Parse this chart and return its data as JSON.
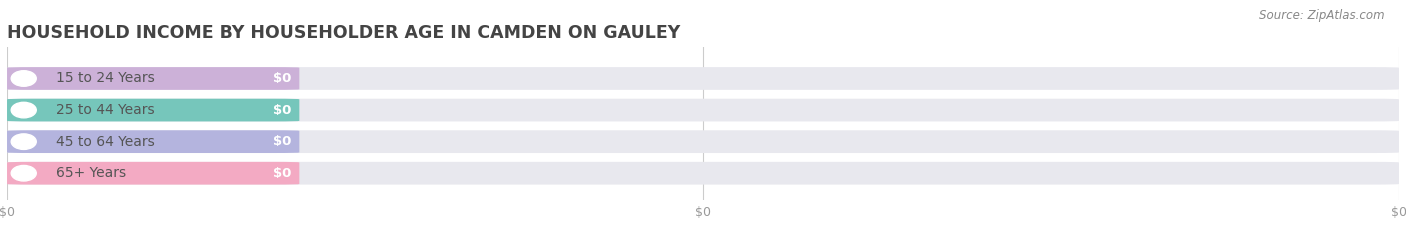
{
  "title": "HOUSEHOLD INCOME BY HOUSEHOLDER AGE IN CAMDEN ON GAULEY",
  "source": "Source: ZipAtlas.com",
  "categories": [
    "15 to 24 Years",
    "25 to 44 Years",
    "45 to 64 Years",
    "65+ Years"
  ],
  "values": [
    0,
    0,
    0,
    0
  ],
  "bar_colors": [
    "#c8a8d5",
    "#62c0b2",
    "#ababdc",
    "#f5a0bc"
  ],
  "value_labels": [
    "$0",
    "$0",
    "$0",
    "$0"
  ],
  "x_tick_positions": [
    0,
    0.5,
    1.0
  ],
  "x_tick_labels": [
    "$0",
    "$0",
    "$0"
  ],
  "xlim": [
    0,
    1
  ],
  "title_fontsize": 12.5,
  "cat_fontsize": 10,
  "val_fontsize": 9.5,
  "source_fontsize": 8.5,
  "tick_fontsize": 9,
  "background_color": "#ffffff",
  "bg_bar_color": "#e8e8ee",
  "figure_width": 14.06,
  "figure_height": 2.33,
  "dpi": 100
}
